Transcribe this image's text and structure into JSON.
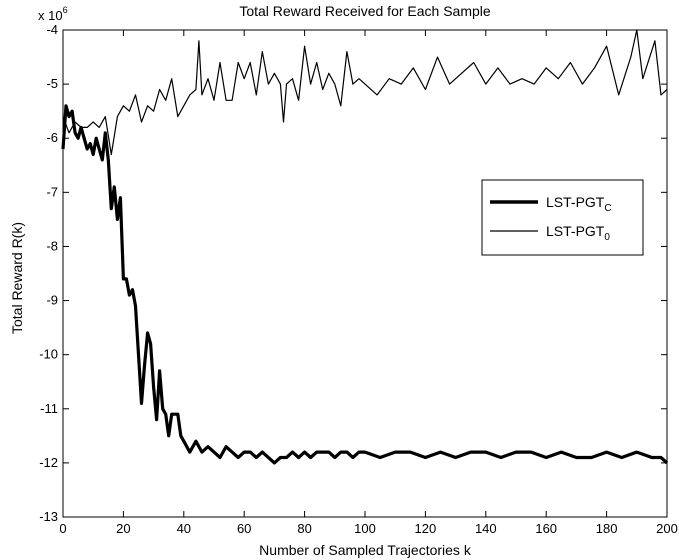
{
  "chart_data": {
    "type": "line",
    "title": "Total Reward Received for Each Sample",
    "xlabel": "Number of Sampled Trajectories k",
    "ylabel": "Total Reward R(k)",
    "y_multiplier_label": "x 10",
    "y_multiplier_exponent": "6",
    "xlim": [
      0,
      200
    ],
    "ylim": [
      -13,
      -4
    ],
    "grid": false,
    "legend_position": "right",
    "x_ticks": [
      0,
      20,
      40,
      60,
      80,
      100,
      120,
      140,
      160,
      180,
      200
    ],
    "x_tick_labels": [
      "0",
      "20",
      "40",
      "60",
      "80",
      "100",
      "120",
      "140",
      "160",
      "180",
      "200"
    ],
    "y_ticks": [
      -4,
      -5,
      -6,
      -7,
      -8,
      -9,
      -10,
      -11,
      -12,
      -13
    ],
    "y_tick_labels": [
      "-4",
      "-5",
      "-6",
      "-7",
      "-8",
      "-9",
      "-10",
      "-11",
      "-12",
      "-13"
    ],
    "series": [
      {
        "name": "LST-PGT",
        "name_subscript": "C",
        "style": "thick",
        "color": "#000000",
        "x": [
          0,
          1,
          2,
          3,
          4,
          5,
          6,
          7,
          8,
          9,
          10,
          11,
          12,
          13,
          14,
          15,
          16,
          17,
          18,
          19,
          20,
          21,
          22,
          23,
          24,
          25,
          26,
          27,
          28,
          29,
          30,
          31,
          32,
          33,
          34,
          35,
          36,
          37,
          38,
          39,
          40,
          42,
          44,
          46,
          48,
          50,
          52,
          54,
          56,
          58,
          60,
          62,
          64,
          66,
          68,
          70,
          72,
          74,
          76,
          78,
          80,
          82,
          84,
          86,
          88,
          90,
          92,
          94,
          96,
          98,
          100,
          105,
          110,
          115,
          120,
          125,
          130,
          135,
          140,
          145,
          150,
          155,
          160,
          165,
          170,
          175,
          180,
          185,
          190,
          195,
          198,
          200
        ],
        "values": [
          -6.2,
          -5.4,
          -5.6,
          -5.5,
          -5.9,
          -6.0,
          -5.8,
          -6.0,
          -6.2,
          -6.1,
          -6.3,
          -6.0,
          -6.2,
          -6.4,
          -5.9,
          -6.4,
          -7.3,
          -6.9,
          -7.5,
          -7.1,
          -8.6,
          -8.6,
          -8.9,
          -8.8,
          -9.1,
          -10.0,
          -10.9,
          -10.2,
          -9.6,
          -9.8,
          -10.6,
          -11.2,
          -10.3,
          -11.0,
          -11.1,
          -11.5,
          -11.1,
          -11.1,
          -11.1,
          -11.5,
          -11.6,
          -11.8,
          -11.6,
          -11.8,
          -11.7,
          -11.8,
          -11.9,
          -11.7,
          -11.8,
          -11.9,
          -11.8,
          -11.8,
          -11.9,
          -11.8,
          -11.9,
          -12.0,
          -11.9,
          -11.9,
          -11.8,
          -11.9,
          -11.8,
          -11.9,
          -11.8,
          -11.8,
          -11.8,
          -11.9,
          -11.8,
          -11.8,
          -11.9,
          -11.8,
          -11.8,
          -11.9,
          -11.8,
          -11.8,
          -11.9,
          -11.8,
          -11.9,
          -11.8,
          -11.8,
          -11.9,
          -11.8,
          -11.8,
          -11.9,
          -11.8,
          -11.9,
          -11.9,
          -11.8,
          -11.9,
          -11.8,
          -11.9,
          -11.9,
          -12.0
        ]
      },
      {
        "name": "LST-PGT",
        "name_subscript": "0",
        "style": "thin",
        "color": "#000000",
        "x": [
          0,
          2,
          4,
          6,
          8,
          10,
          12,
          14,
          16,
          18,
          20,
          22,
          24,
          26,
          28,
          30,
          32,
          34,
          36,
          38,
          40,
          42,
          44,
          45,
          46,
          48,
          50,
          52,
          54,
          56,
          58,
          60,
          62,
          64,
          66,
          68,
          70,
          72,
          73,
          74,
          76,
          78,
          80,
          82,
          84,
          86,
          88,
          90,
          92,
          94,
          96,
          98,
          100,
          104,
          108,
          112,
          116,
          120,
          124,
          128,
          132,
          136,
          140,
          144,
          148,
          152,
          156,
          160,
          164,
          168,
          172,
          176,
          180,
          184,
          188,
          190,
          192,
          196,
          198,
          200
        ],
        "values": [
          -5.6,
          -5.9,
          -5.7,
          -5.8,
          -5.8,
          -5.7,
          -5.8,
          -5.6,
          -6.3,
          -5.6,
          -5.4,
          -5.5,
          -5.2,
          -5.7,
          -5.4,
          -5.5,
          -5.1,
          -5.3,
          -4.9,
          -5.6,
          -5.4,
          -5.2,
          -5.1,
          -4.2,
          -5.2,
          -4.9,
          -5.3,
          -4.6,
          -5.3,
          -5.3,
          -4.6,
          -4.9,
          -4.6,
          -5.2,
          -4.4,
          -5.0,
          -4.8,
          -5.0,
          -5.7,
          -5.0,
          -4.9,
          -5.3,
          -4.3,
          -5.0,
          -4.6,
          -5.1,
          -4.8,
          -5.0,
          -5.4,
          -4.4,
          -5.0,
          -4.9,
          -5.0,
          -5.2,
          -4.9,
          -5.0,
          -4.7,
          -5.1,
          -4.5,
          -5.0,
          -4.8,
          -4.6,
          -5.0,
          -4.7,
          -5.0,
          -4.9,
          -5.0,
          -4.7,
          -4.9,
          -4.6,
          -5.0,
          -4.7,
          -4.3,
          -5.2,
          -4.5,
          -4.0,
          -4.9,
          -4.2,
          -5.2,
          -5.1
        ]
      }
    ]
  }
}
